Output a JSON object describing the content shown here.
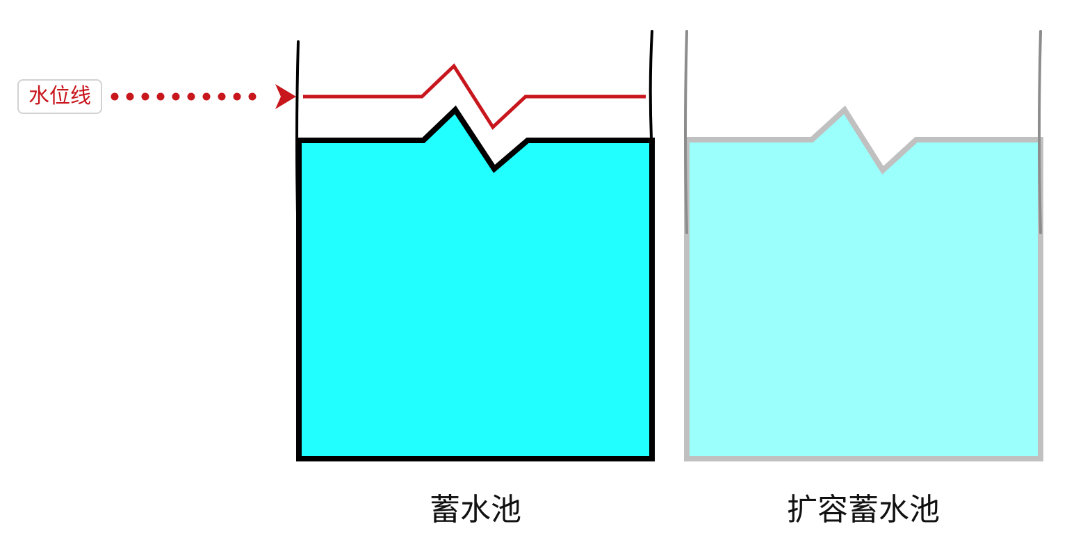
{
  "labels": {
    "water_level": "水位线",
    "tank": "蓄水池",
    "expanded_tank": "扩容蓄水池"
  },
  "colors": {
    "water": "#22ffff",
    "water_faded": "#9bfffc",
    "tank_outline": "#000000",
    "tank_outline_faded": "#c0c0c0",
    "tank_wall_faded": "#8c8c8c",
    "water_level_line": "#c8161d",
    "badge_border": "#d2d2d2"
  }
}
